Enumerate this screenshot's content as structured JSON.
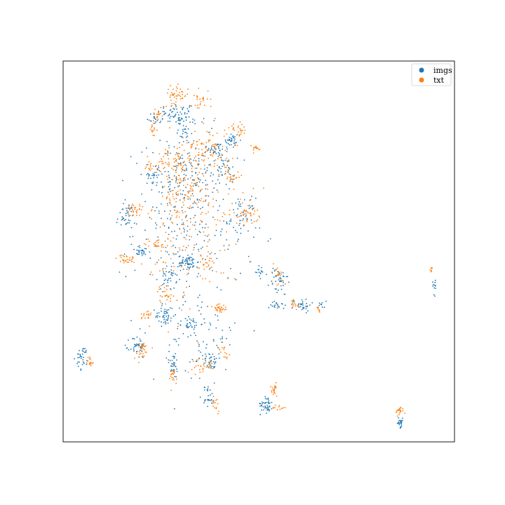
{
  "chart_data": {
    "type": "scatter",
    "title": "",
    "xlabel": "",
    "ylabel": "",
    "grid": false,
    "ticks": false,
    "xlim": [
      0,
      100
    ],
    "ylim": [
      0,
      100
    ],
    "legend": {
      "placement": "top-right",
      "entries": [
        {
          "label": "imgs",
          "color": "#1f77b4"
        },
        {
          "label": "txt",
          "color": "#ff7f0e"
        }
      ]
    },
    "series": [
      {
        "name": "imgs",
        "color": "#1f77b4",
        "clusters": [
          {
            "cx": 29,
            "cy": 86,
            "sx": 2.5,
            "sy": 1.5,
            "n": 60
          },
          {
            "cx": 23,
            "cy": 85,
            "sx": 0.8,
            "sy": 0.8,
            "n": 15
          },
          {
            "cx": 31,
            "cy": 83,
            "sx": 1.5,
            "sy": 2.5,
            "n": 30
          },
          {
            "cx": 43,
            "cy": 79,
            "sx": 1.0,
            "sy": 1.2,
            "n": 35
          },
          {
            "cx": 39,
            "cy": 77,
            "sx": 1.2,
            "sy": 0.8,
            "n": 25
          },
          {
            "cx": 23,
            "cy": 70,
            "sx": 1.0,
            "sy": 0.5,
            "n": 15
          },
          {
            "cx": 30,
            "cy": 70,
            "sx": 4,
            "sy": 6,
            "n": 140
          },
          {
            "cx": 41,
            "cy": 72,
            "sx": 1.5,
            "sy": 3,
            "n": 45
          },
          {
            "cx": 16,
            "cy": 59,
            "sx": 1.2,
            "sy": 1.8,
            "n": 40
          },
          {
            "cx": 46,
            "cy": 59,
            "sx": 1.5,
            "sy": 2.5,
            "n": 50
          },
          {
            "cx": 20,
            "cy": 50,
            "sx": 1.2,
            "sy": 0.7,
            "n": 30
          },
          {
            "cx": 32,
            "cy": 47,
            "sx": 1.3,
            "sy": 1.0,
            "n": 55
          },
          {
            "cx": 27,
            "cy": 43,
            "sx": 1.0,
            "sy": 1.5,
            "n": 30
          },
          {
            "cx": 32,
            "cy": 55,
            "sx": 7,
            "sy": 12,
            "n": 220
          },
          {
            "cx": 55,
            "cy": 42,
            "sx": 1.2,
            "sy": 2.0,
            "n": 40
          },
          {
            "cx": 50,
            "cy": 45,
            "sx": 0.8,
            "sy": 1.2,
            "n": 15
          },
          {
            "cx": 61,
            "cy": 36,
            "sx": 1.2,
            "sy": 0.8,
            "n": 30
          },
          {
            "cx": 55,
            "cy": 36,
            "sx": 1.0,
            "sy": 0.8,
            "n": 20
          },
          {
            "cx": 26,
            "cy": 33,
            "sx": 1.2,
            "sy": 1.2,
            "n": 45
          },
          {
            "cx": 32,
            "cy": 31,
            "sx": 1.5,
            "sy": 0.8,
            "n": 30
          },
          {
            "cx": 19,
            "cy": 25,
            "sx": 1.0,
            "sy": 1.5,
            "n": 40
          },
          {
            "cx": 28,
            "cy": 20,
            "sx": 0.8,
            "sy": 1.8,
            "n": 30
          },
          {
            "cx": 38,
            "cy": 21,
            "sx": 1.2,
            "sy": 1.0,
            "n": 30
          },
          {
            "cx": 37,
            "cy": 12,
            "sx": 0.8,
            "sy": 1.5,
            "n": 25
          },
          {
            "cx": 5,
            "cy": 22,
            "sx": 0.8,
            "sy": 1.5,
            "n": 35
          },
          {
            "cx": 52,
            "cy": 10,
            "sx": 0.8,
            "sy": 1.2,
            "n": 45
          },
          {
            "cx": 86,
            "cy": 5,
            "sx": 0.5,
            "sy": 0.6,
            "n": 25
          },
          {
            "cx": 95,
            "cy": 41,
            "sx": 0.3,
            "sy": 1.2,
            "n": 12
          },
          {
            "cx": 66,
            "cy": 36,
            "sx": 0.6,
            "sy": 0.6,
            "n": 10
          },
          {
            "cx": 36,
            "cy": 27,
            "sx": 4,
            "sy": 5,
            "n": 70
          }
        ]
      },
      {
        "name": "txt",
        "color": "#ff7f0e",
        "clusters": [
          {
            "cx": 29,
            "cy": 91,
            "sx": 1.5,
            "sy": 1.2,
            "n": 45
          },
          {
            "cx": 35,
            "cy": 90,
            "sx": 1.2,
            "sy": 1.5,
            "n": 25
          },
          {
            "cx": 23,
            "cy": 82,
            "sx": 0.5,
            "sy": 1.0,
            "n": 15
          },
          {
            "cx": 45,
            "cy": 82,
            "sx": 1.2,
            "sy": 0.8,
            "n": 25
          },
          {
            "cx": 49,
            "cy": 77,
            "sx": 0.8,
            "sy": 0.5,
            "n": 15
          },
          {
            "cx": 22,
            "cy": 72,
            "sx": 0.6,
            "sy": 0.6,
            "n": 12
          },
          {
            "cx": 37,
            "cy": 77,
            "sx": 3,
            "sy": 3,
            "n": 90
          },
          {
            "cx": 31,
            "cy": 66,
            "sx": 3,
            "sy": 5,
            "n": 110
          },
          {
            "cx": 43,
            "cy": 70,
            "sx": 1.0,
            "sy": 1.5,
            "n": 25
          },
          {
            "cx": 18,
            "cy": 61,
            "sx": 1.2,
            "sy": 0.8,
            "n": 30
          },
          {
            "cx": 47,
            "cy": 60,
            "sx": 1.5,
            "sy": 1.5,
            "n": 40
          },
          {
            "cx": 24,
            "cy": 52,
            "sx": 1.5,
            "sy": 0.8,
            "n": 25
          },
          {
            "cx": 16,
            "cy": 48,
            "sx": 1.2,
            "sy": 0.6,
            "n": 30
          },
          {
            "cx": 37,
            "cy": 47,
            "sx": 0.7,
            "sy": 1.0,
            "n": 20
          },
          {
            "cx": 26,
            "cy": 39,
            "sx": 1.0,
            "sy": 1.2,
            "n": 25
          },
          {
            "cx": 40,
            "cy": 35,
            "sx": 1.0,
            "sy": 0.8,
            "n": 30
          },
          {
            "cx": 21,
            "cy": 33,
            "sx": 0.8,
            "sy": 1.0,
            "n": 20
          },
          {
            "cx": 34,
            "cy": 55,
            "sx": 6,
            "sy": 10,
            "n": 160
          },
          {
            "cx": 55,
            "cy": 44,
            "sx": 1.0,
            "sy": 1.5,
            "n": 20
          },
          {
            "cx": 59,
            "cy": 36,
            "sx": 0.8,
            "sy": 0.8,
            "n": 15
          },
          {
            "cx": 20,
            "cy": 24,
            "sx": 1.0,
            "sy": 1.2,
            "n": 30
          },
          {
            "cx": 28,
            "cy": 17,
            "sx": 0.7,
            "sy": 1.5,
            "n": 20
          },
          {
            "cx": 36,
            "cy": 20,
            "sx": 1.5,
            "sy": 1.0,
            "n": 30
          },
          {
            "cx": 41,
            "cy": 24,
            "sx": 0.8,
            "sy": 1.0,
            "n": 15
          },
          {
            "cx": 39,
            "cy": 10,
            "sx": 0.5,
            "sy": 1.0,
            "n": 15
          },
          {
            "cx": 7,
            "cy": 21,
            "sx": 0.4,
            "sy": 0.8,
            "n": 15
          },
          {
            "cx": 54,
            "cy": 14,
            "sx": 0.6,
            "sy": 1.0,
            "n": 20
          },
          {
            "cx": 55,
            "cy": 9,
            "sx": 0.8,
            "sy": 0.4,
            "n": 12
          },
          {
            "cx": 86,
            "cy": 8,
            "sx": 0.5,
            "sy": 0.6,
            "n": 20
          },
          {
            "cx": 94,
            "cy": 45,
            "sx": 0.3,
            "sy": 0.5,
            "n": 8
          },
          {
            "cx": 65,
            "cy": 35,
            "sx": 0.5,
            "sy": 0.5,
            "n": 8
          },
          {
            "cx": 28,
            "cy": 74,
            "sx": 2,
            "sy": 2,
            "n": 60
          },
          {
            "cx": 24,
            "cy": 86,
            "sx": 0.7,
            "sy": 0.8,
            "n": 15
          }
        ]
      }
    ]
  }
}
